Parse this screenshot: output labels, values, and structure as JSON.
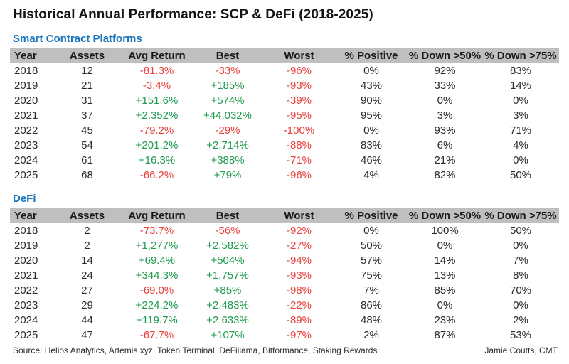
{
  "title": "Historical Annual Performance: SCP & DeFi (2018-2025)",
  "colors": {
    "accent_blue": "#1b74bc",
    "positive_green": "#1e9b4d",
    "negative_red": "#e8403a",
    "header_bar_gray": "#bfbfbf"
  },
  "chart_data": [
    {
      "type": "table",
      "title": "Smart Contract Platforms",
      "columns": [
        "Year",
        "Assets",
        "Avg Return",
        "Best",
        "Worst",
        "% Positive",
        "% Down >50%",
        "% Down >75%"
      ],
      "rows": [
        [
          "2018",
          "12",
          "-81.3%",
          "-33%",
          "-96%",
          "0%",
          "92%",
          "83%"
        ],
        [
          "2019",
          "21",
          "-3.4%",
          "+185%",
          "-93%",
          "43%",
          "33%",
          "14%"
        ],
        [
          "2020",
          "31",
          "+151.6%",
          "+574%",
          "-39%",
          "90%",
          "0%",
          "0%"
        ],
        [
          "2021",
          "37",
          "+2,352%",
          "+44,032%",
          "-95%",
          "95%",
          "3%",
          "3%"
        ],
        [
          "2022",
          "45",
          "-79.2%",
          "-29%",
          "-100%",
          "0%",
          "93%",
          "71%"
        ],
        [
          "2023",
          "54",
          "+201.2%",
          "+2,714%",
          "-88%",
          "83%",
          "6%",
          "4%"
        ],
        [
          "2024",
          "61",
          "+16.3%",
          "+388%",
          "-71%",
          "46%",
          "21%",
          "0%"
        ],
        [
          "2025",
          "68",
          "-66.2%",
          "+79%",
          "-96%",
          "4%",
          "82%",
          "50%"
        ]
      ]
    },
    {
      "type": "table",
      "title": "DeFi",
      "columns": [
        "Year",
        "Assets",
        "Avg Return",
        "Best",
        "Worst",
        "% Positive",
        "% Down >50%",
        "% Down >75%"
      ],
      "rows": [
        [
          "2018",
          "2",
          "-73.7%",
          "-56%",
          "-92%",
          "0%",
          "100%",
          "50%"
        ],
        [
          "2019",
          "2",
          "+1,277%",
          "+2,582%",
          "-27%",
          "50%",
          "0%",
          "0%"
        ],
        [
          "2020",
          "14",
          "+69.4%",
          "+504%",
          "-94%",
          "57%",
          "14%",
          "7%"
        ],
        [
          "2021",
          "24",
          "+344.3%",
          "+1,757%",
          "-93%",
          "75%",
          "13%",
          "8%"
        ],
        [
          "2022",
          "27",
          "-69.0%",
          "+85%",
          "-98%",
          "7%",
          "85%",
          "70%"
        ],
        [
          "2023",
          "29",
          "+224.2%",
          "+2,483%",
          "-22%",
          "86%",
          "0%",
          "0%"
        ],
        [
          "2024",
          "44",
          "+119.7%",
          "+2,633%",
          "-89%",
          "48%",
          "23%",
          "2%"
        ],
        [
          "2025",
          "47",
          "-67.7%",
          "+107%",
          "-97%",
          "2%",
          "87%",
          "53%"
        ]
      ]
    }
  ],
  "footer": {
    "source": "Source: Helios Analytics, Artemis xyz, Token Terminal, DeFillama, Bitformance, Staking Rewards",
    "author": "Jamie Coutts, CMT"
  }
}
